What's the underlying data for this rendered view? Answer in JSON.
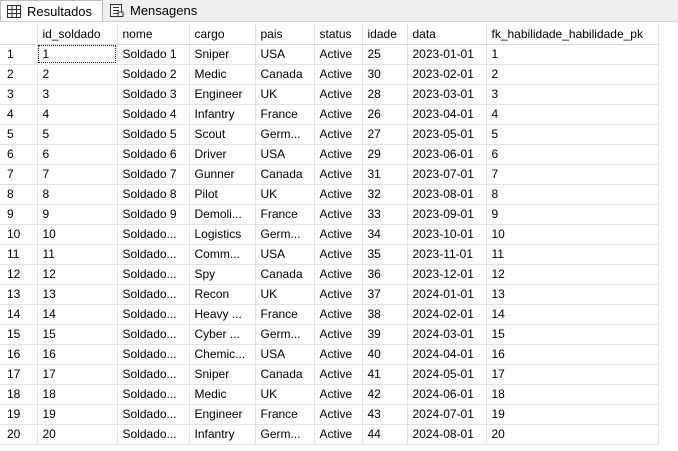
{
  "tabs": [
    {
      "label": "Resultados",
      "icon": "grid-icon"
    },
    {
      "label": "Mensagens",
      "icon": "messages-icon"
    }
  ],
  "columns": [
    "id_soldado",
    "nome",
    "cargo",
    "pais",
    "status",
    "idade",
    "data",
    "fk_habilidade_habilidade_pk"
  ],
  "rows": [
    [
      "1",
      "1",
      "Soldado 1",
      "Sniper",
      "USA",
      "Active",
      "25",
      "2023-01-01",
      "1"
    ],
    [
      "2",
      "2",
      "Soldado 2",
      "Medic",
      "Canada",
      "Active",
      "30",
      "2023-02-01",
      "2"
    ],
    [
      "3",
      "3",
      "Soldado 3",
      "Engineer",
      "UK",
      "Active",
      "28",
      "2023-03-01",
      "3"
    ],
    [
      "4",
      "4",
      "Soldado 4",
      "Infantry",
      "France",
      "Active",
      "26",
      "2023-04-01",
      "4"
    ],
    [
      "5",
      "5",
      "Soldado 5",
      "Scout",
      "Germ...",
      "Active",
      "27",
      "2023-05-01",
      "5"
    ],
    [
      "6",
      "6",
      "Soldado 6",
      "Driver",
      "USA",
      "Active",
      "29",
      "2023-06-01",
      "6"
    ],
    [
      "7",
      "7",
      "Soldado 7",
      "Gunner",
      "Canada",
      "Active",
      "31",
      "2023-07-01",
      "7"
    ],
    [
      "8",
      "8",
      "Soldado 8",
      "Pilot",
      "UK",
      "Active",
      "32",
      "2023-08-01",
      "8"
    ],
    [
      "9",
      "9",
      "Soldado 9",
      "Demoli...",
      "France",
      "Active",
      "33",
      "2023-09-01",
      "9"
    ],
    [
      "10",
      "10",
      "Soldado...",
      "Logistics",
      "Germ...",
      "Active",
      "34",
      "2023-10-01",
      "10"
    ],
    [
      "11",
      "11",
      "Soldado...",
      "Comm...",
      "USA",
      "Active",
      "35",
      "2023-11-01",
      "11"
    ],
    [
      "12",
      "12",
      "Soldado...",
      "Spy",
      "Canada",
      "Active",
      "36",
      "2023-12-01",
      "12"
    ],
    [
      "13",
      "13",
      "Soldado...",
      "Recon",
      "UK",
      "Active",
      "37",
      "2024-01-01",
      "13"
    ],
    [
      "14",
      "14",
      "Soldado...",
      "Heavy ...",
      "France",
      "Active",
      "38",
      "2024-02-01",
      "14"
    ],
    [
      "15",
      "15",
      "Soldado...",
      "Cyber ...",
      "Germ...",
      "Active",
      "39",
      "2024-03-01",
      "15"
    ],
    [
      "16",
      "16",
      "Soldado...",
      "Chemic...",
      "USA",
      "Active",
      "40",
      "2024-04-01",
      "16"
    ],
    [
      "17",
      "17",
      "Soldado...",
      "Sniper",
      "Canada",
      "Active",
      "41",
      "2024-05-01",
      "17"
    ],
    [
      "18",
      "18",
      "Soldado...",
      "Medic",
      "UK",
      "Active",
      "42",
      "2024-06-01",
      "18"
    ],
    [
      "19",
      "19",
      "Soldado...",
      "Engineer",
      "France",
      "Active",
      "43",
      "2024-07-01",
      "19"
    ],
    [
      "20",
      "20",
      "Soldado...",
      "Infantry",
      "Germ...",
      "Active",
      "44",
      "2024-08-01",
      "20"
    ]
  ],
  "colors": {
    "tabbar": "#f0f0f0",
    "gridline": "#e3e3e3"
  }
}
